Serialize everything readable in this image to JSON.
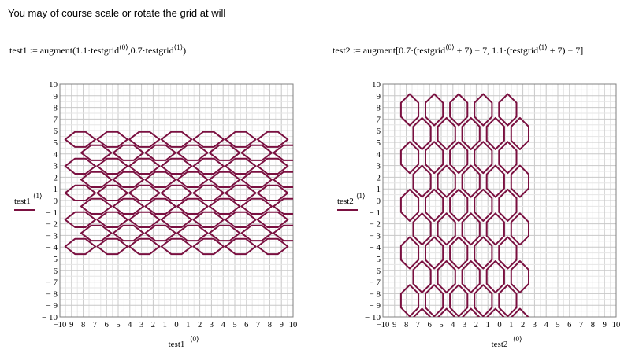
{
  "intro_text": "You may of course scale or rotate the grid at will",
  "formulas": [
    {
      "lhs": "test1",
      "op": ":=",
      "func": "augment",
      "body": "1.1·testgrid",
      "sup1": "⟨0⟩",
      "mid": ",0.7·testgrid",
      "sup2": "⟨1⟩"
    },
    {
      "lhs": "test2",
      "op": ":=",
      "func": "augment",
      "body": "0.7·(testgrid",
      "sup1": "⟨0⟩",
      "mid": " + 7) − 7, 1.1·(testgrid",
      "sup2": "⟨1⟩",
      "tail": " + 7) − 7"
    }
  ],
  "chart_data": [
    {
      "type": "line",
      "trace_color": "#7a1040",
      "grid": true,
      "xlim": [
        -10,
        10
      ],
      "ylim": [
        -10,
        10
      ],
      "xlabel": "test1",
      "xlabel_sup": "⟨0⟩",
      "ylabel": "test1",
      "ylabel_sup": "⟨1⟩",
      "xticks": [
        "−10",
        "9",
        "8",
        "7",
        "6",
        "5",
        "4",
        "3",
        "2",
        "1",
        "0",
        "1",
        "2",
        "3",
        "4",
        "5",
        "6",
        "7",
        "8",
        "9",
        "10"
      ],
      "yticks": [
        "10",
        "9",
        "8",
        "7",
        "6",
        "5",
        "4",
        "3",
        "2",
        "1",
        "0",
        "− 1",
        "− 2",
        "− 3",
        "− 4",
        "− 5",
        "− 6",
        "− 7",
        "− 8",
        "− 9",
        "− 10"
      ],
      "hex": {
        "cols": 7,
        "rows": 5,
        "col_start": -8.25,
        "col_step": 2.75,
        "row_start": 5.25,
        "row_step": -2.3,
        "half_width": 1.3,
        "flat_half": 0.45,
        "half_height": 0.65,
        "stagger_x": 1.375,
        "stagger_y": -1.15
      }
    },
    {
      "type": "line",
      "trace_color": "#7a1040",
      "grid": true,
      "xlim": [
        -10,
        10
      ],
      "ylim": [
        -10,
        10
      ],
      "xlabel": "test2",
      "xlabel_sup": "⟨0⟩",
      "ylabel": "test2",
      "ylabel_sup": "⟨1⟩",
      "xticks": [
        "−10",
        "9",
        "8",
        "7",
        "6",
        "5",
        "4",
        "3",
        "2",
        "1",
        "0",
        "1",
        "2",
        "3",
        "4",
        "5",
        "6",
        "7",
        "8",
        "9",
        "10"
      ],
      "yticks": [
        "10",
        "9",
        "8",
        "7",
        "6",
        "5",
        "4",
        "3",
        "2",
        "1",
        "0",
        "− 1",
        "− 2",
        "− 3",
        "− 4",
        "− 5",
        "− 6",
        "− 7",
        "− 8",
        "− 9",
        "− 10"
      ],
      "hex": {
        "cols": 5,
        "rows": 5,
        "col_start": -7.7,
        "col_step": 2.1,
        "row_start": 7.8,
        "row_step": -4.1,
        "half_width": 0.75,
        "flat_half": 1.2,
        "half_height": 1.35,
        "stagger_x": 1.05,
        "stagger_y": -2.05,
        "vertical": true
      }
    }
  ]
}
